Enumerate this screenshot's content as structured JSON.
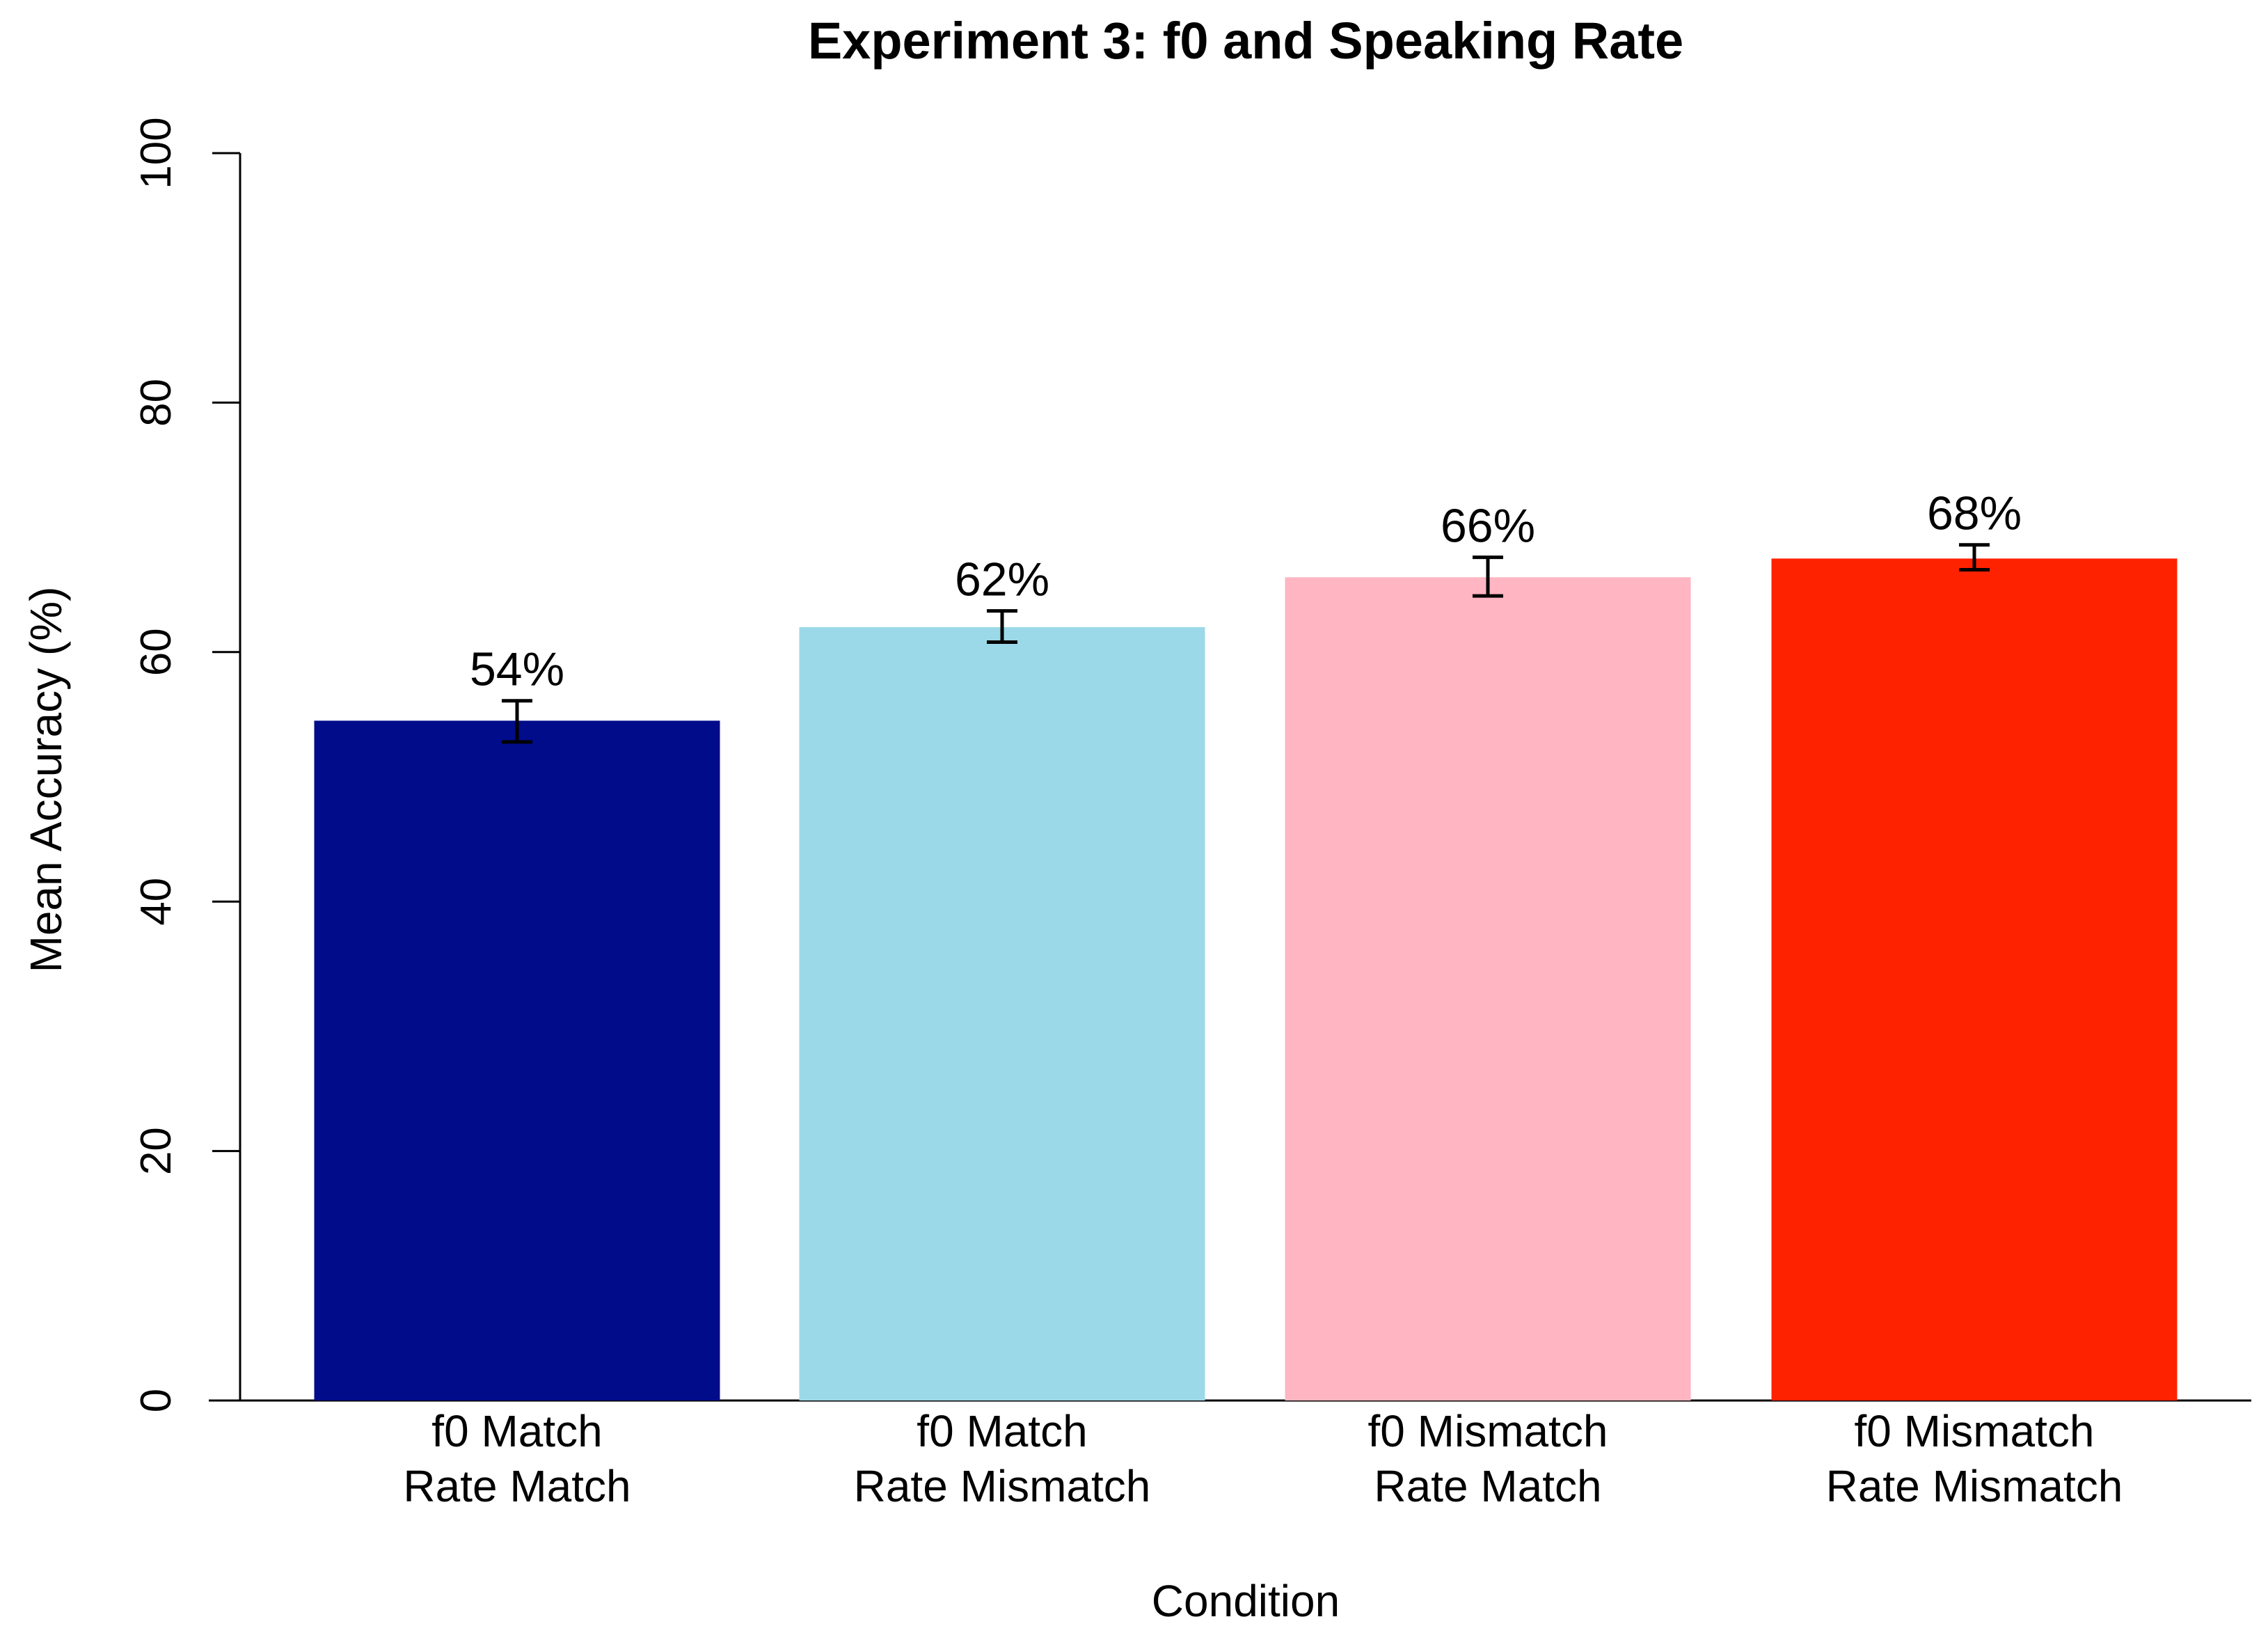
{
  "chart_data": {
    "type": "bar",
    "title": "Experiment 3: f0 and Speaking Rate",
    "xlabel": "Condition",
    "ylabel": "Mean Accuracy (%)",
    "ylim": [
      0,
      100
    ],
    "yticks": [
      "0",
      "20",
      "40",
      "60",
      "80",
      "100"
    ],
    "categories": [
      [
        "f0 Match",
        "Rate Match"
      ],
      [
        "f0 Match",
        "Rate Mismatch"
      ],
      [
        "f0 Mismatch",
        "Rate Match"
      ],
      [
        "f0 Mismatch",
        "Rate Mismatch"
      ]
    ],
    "values": [
      54.5,
      62,
      66,
      67.5
    ],
    "error_low": [
      52.8,
      60.8,
      64.5,
      66.6
    ],
    "error_high": [
      56.1,
      63.3,
      67.6,
      68.6
    ],
    "data_labels": [
      "54%",
      "62%",
      "66%",
      "68%"
    ],
    "colors": [
      "#000C8A",
      "#9BD9E8",
      "#FFB5C2",
      "#FF2200"
    ],
    "grid": false,
    "legend": "none"
  }
}
